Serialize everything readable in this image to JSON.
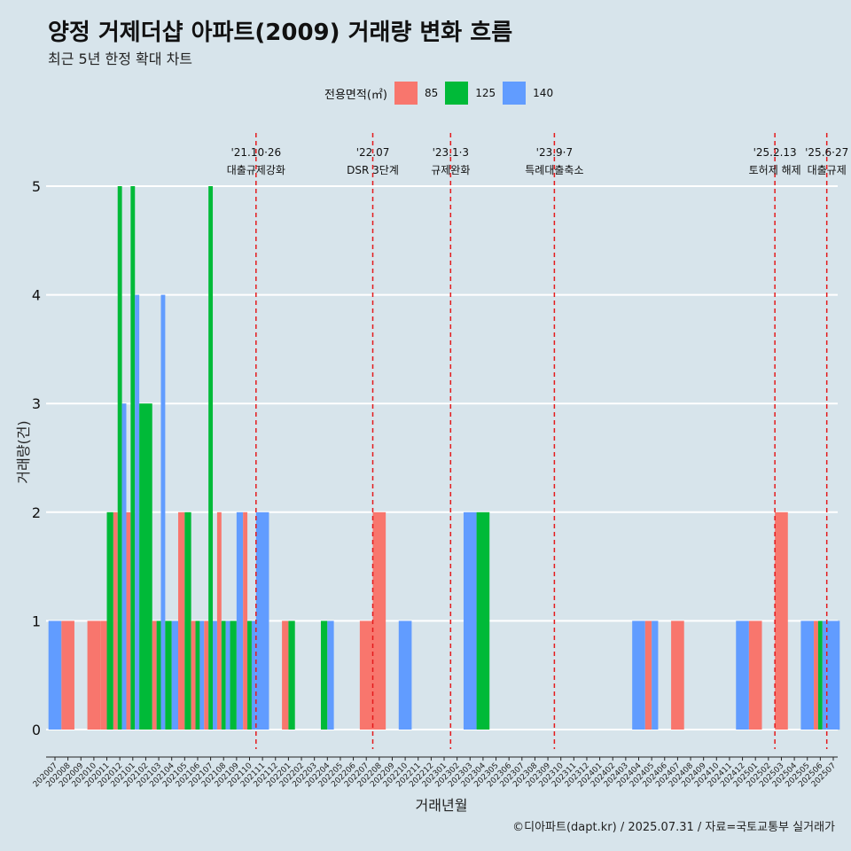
{
  "title": "양정 거제더샵 아파트(2009) 거래량 변화 흐름",
  "subtitle": "최근 5년 한정 확대 차트",
  "legend_title": "전용면적(㎡)",
  "caption": "©디아파트(dapt.kr) / 2025.07.31 / 자료=국토교통부 실거래가",
  "colors": {
    "85": "#f8766d",
    "125": "#00ba38",
    "140": "#619cff",
    "vline": "#e41a1c",
    "grid": "#ffffff"
  },
  "chart_data": {
    "type": "bar",
    "xlabel": "거래년월",
    "ylabel": "거래량(건)",
    "ylim": [
      0,
      5
    ],
    "yticks": [
      0,
      1,
      2,
      3,
      4,
      5
    ],
    "categories": [
      "202007",
      "202008",
      "202009",
      "202010",
      "202011",
      "202012",
      "202101",
      "202102",
      "202103",
      "202104",
      "202105",
      "202106",
      "202107",
      "202108",
      "202109",
      "202110",
      "202111",
      "202112",
      "202201",
      "202202",
      "202203",
      "202204",
      "202205",
      "202206",
      "202207",
      "202208",
      "202209",
      "202210",
      "202211",
      "202212",
      "202301",
      "202302",
      "202303",
      "202304",
      "202305",
      "202306",
      "202307",
      "202308",
      "202309",
      "202310",
      "202311",
      "202312",
      "202401",
      "202402",
      "202403",
      "202404",
      "202405",
      "202406",
      "202407",
      "202408",
      "202409",
      "202410",
      "202411",
      "202412",
      "202501",
      "202502",
      "202503",
      "202504",
      "202505",
      "202506",
      "202507"
    ],
    "series": [
      {
        "name": "85",
        "values": [
          {
            "x": "202008",
            "y": 1
          },
          {
            "x": "202010",
            "y": 1
          },
          {
            "x": "202011",
            "y": 1
          },
          {
            "x": "202012",
            "y": 2
          },
          {
            "x": "202101",
            "y": 2
          },
          {
            "x": "202103",
            "y": 1
          },
          {
            "x": "202105",
            "y": 2
          },
          {
            "x": "202106",
            "y": 1
          },
          {
            "x": "202107",
            "y": 1
          },
          {
            "x": "202108",
            "y": 2
          },
          {
            "x": "202110",
            "y": 2
          },
          {
            "x": "202201",
            "y": 1
          },
          {
            "x": "202207",
            "y": 1
          },
          {
            "x": "202208",
            "y": 2
          },
          {
            "x": "202405",
            "y": 1
          },
          {
            "x": "202407",
            "y": 1
          },
          {
            "x": "202501",
            "y": 1
          },
          {
            "x": "202503",
            "y": 2
          },
          {
            "x": "202506",
            "y": 1
          }
        ]
      },
      {
        "name": "125",
        "values": [
          {
            "x": "202011",
            "y": 2
          },
          {
            "x": "202012",
            "y": 5
          },
          {
            "x": "202101",
            "y": 5
          },
          {
            "x": "202102",
            "y": 3
          },
          {
            "x": "202103",
            "y": 1
          },
          {
            "x": "202104",
            "y": 1
          },
          {
            "x": "202105",
            "y": 2
          },
          {
            "x": "202106",
            "y": 1
          },
          {
            "x": "202107",
            "y": 5
          },
          {
            "x": "202108",
            "y": 1
          },
          {
            "x": "202109",
            "y": 1
          },
          {
            "x": "202110",
            "y": 1
          },
          {
            "x": "202201",
            "y": 1
          },
          {
            "x": "202204",
            "y": 1
          },
          {
            "x": "202304",
            "y": 2
          },
          {
            "x": "202506",
            "y": 1
          }
        ]
      },
      {
        "name": "140",
        "values": [
          {
            "x": "202007",
            "y": 1
          },
          {
            "x": "202012",
            "y": 3
          },
          {
            "x": "202101",
            "y": 4
          },
          {
            "x": "202103",
            "y": 4
          },
          {
            "x": "202104",
            "y": 1
          },
          {
            "x": "202106",
            "y": 1
          },
          {
            "x": "202107",
            "y": 1
          },
          {
            "x": "202108",
            "y": 1
          },
          {
            "x": "202109",
            "y": 2
          },
          {
            "x": "202110",
            "y": 1
          },
          {
            "x": "202111",
            "y": 2
          },
          {
            "x": "202204",
            "y": 1
          },
          {
            "x": "202210",
            "y": 1
          },
          {
            "x": "202303",
            "y": 2
          },
          {
            "x": "202404",
            "y": 1
          },
          {
            "x": "202405",
            "y": 1
          },
          {
            "x": "202412",
            "y": 1
          },
          {
            "x": "202505",
            "y": 1
          },
          {
            "x": "202506",
            "y": 1
          },
          {
            "x": "202507",
            "y": 1
          }
        ]
      }
    ],
    "annotations": [
      {
        "x": "202110",
        "date": "'21.10·26",
        "label": "대출규제강화"
      },
      {
        "x": "202207",
        "date": "'22.07",
        "label": "DSR 3단계"
      },
      {
        "x": "202301",
        "date": "'23.1·3",
        "label": "규제완화"
      },
      {
        "x": "202309",
        "date": "'23.9·7",
        "label": "특례대출축소"
      },
      {
        "x": "202502",
        "date": "'25.2.13",
        "label": "토허제 해제"
      },
      {
        "x": "202506",
        "date": "'25.6·27",
        "label": "대출규제"
      }
    ]
  }
}
